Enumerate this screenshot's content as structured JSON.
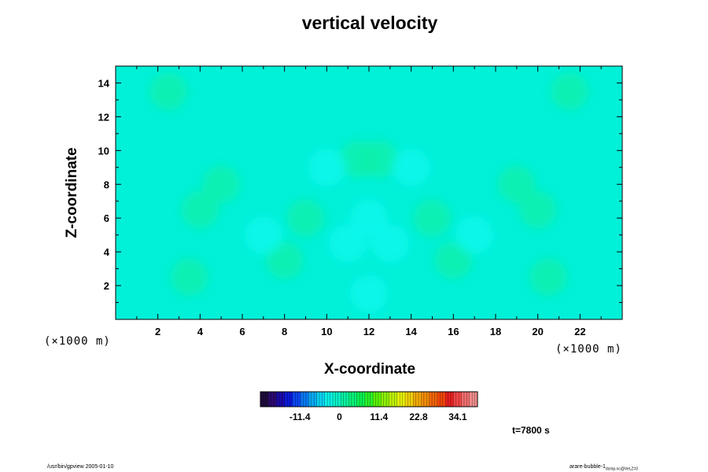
{
  "chart_data": {
    "type": "heatmap",
    "title": "vertical velocity",
    "xlabel": "X-coordinate",
    "ylabel": "Z-coordinate",
    "x_unit": "(×1000 m)",
    "xlim": [
      0,
      24
    ],
    "ylim": [
      0,
      15
    ],
    "x_ticks": [
      "2",
      "4",
      "6",
      "8",
      "10",
      "12",
      "14",
      "16",
      "18",
      "20",
      "22"
    ],
    "y_ticks": [
      "2",
      "4",
      "6",
      "8",
      "10",
      "12",
      "14"
    ],
    "colorbar": {
      "ticks": [
        "-11.4",
        "0",
        "11.4",
        "22.8",
        "34.1"
      ],
      "tick_values": [
        -11.4,
        0,
        11.4,
        22.8,
        34.1
      ],
      "range": [
        -22.8,
        39.8
      ],
      "colors": [
        "#1e0a3c",
        "#2a0a6e",
        "#1a0aa8",
        "#0a1ad8",
        "#0a46f0",
        "#0a78f0",
        "#0aa8f0",
        "#0ad2f0",
        "#0af0e6",
        "#0af0c8",
        "#0af0a0",
        "#0af078",
        "#0af050",
        "#2af02a",
        "#5af00a",
        "#8cf00a",
        "#bef00a",
        "#e6f00a",
        "#f0d20a",
        "#f0aa0a",
        "#f08c0a",
        "#f0640a",
        "#f0460a",
        "#e61e1e",
        "#f04646",
        "#f06e6e",
        "#f08c8c"
      ],
      "background_color": "#00f0d8"
    },
    "annotation": "t=7800 s",
    "features": [
      {
        "x": 2.5,
        "z": 13.5,
        "sign": 1
      },
      {
        "x": 21.5,
        "z": 13.5,
        "sign": 1
      },
      {
        "x": 11.5,
        "z": 9.5,
        "sign": 1
      },
      {
        "x": 12.5,
        "z": 9.5,
        "sign": 1
      },
      {
        "x": 5.0,
        "z": 8.0,
        "sign": 1
      },
      {
        "x": 19.0,
        "z": 8.0,
        "sign": 1
      },
      {
        "x": 4.0,
        "z": 6.5,
        "sign": 1
      },
      {
        "x": 20.0,
        "z": 6.5,
        "sign": 1
      },
      {
        "x": 9.0,
        "z": 6.0,
        "sign": 1
      },
      {
        "x": 15.0,
        "z": 6.0,
        "sign": 1
      },
      {
        "x": 3.5,
        "z": 2.5,
        "sign": 1
      },
      {
        "x": 20.5,
        "z": 2.5,
        "sign": 1
      },
      {
        "x": 8.0,
        "z": 3.5,
        "sign": 1
      },
      {
        "x": 16.0,
        "z": 3.5,
        "sign": 1
      },
      {
        "x": 12.0,
        "z": 6.0,
        "sign": -1
      },
      {
        "x": 12.0,
        "z": 1.5,
        "sign": -1
      },
      {
        "x": 7.0,
        "z": 5.0,
        "sign": -1
      },
      {
        "x": 17.0,
        "z": 5.0,
        "sign": -1
      },
      {
        "x": 10.0,
        "z": 9.0,
        "sign": -1
      },
      {
        "x": 14.0,
        "z": 9.0,
        "sign": -1
      },
      {
        "x": 11.0,
        "z": 4.5,
        "sign": -1
      },
      {
        "x": 13.0,
        "z": 4.5,
        "sign": -1
      }
    ]
  },
  "footer": {
    "left": "/usr/bin/gpview 2005-01-10",
    "right_main": "arare-bubble-1",
    "right_sub": "dcmp.nc@Vel,Z=0"
  }
}
